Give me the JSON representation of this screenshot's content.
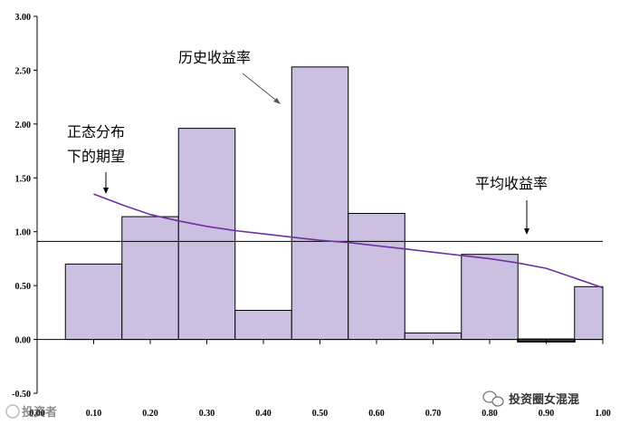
{
  "chart_data": {
    "type": "bar",
    "title": "",
    "xlabel": "",
    "ylabel": "",
    "ylim": [
      -0.5,
      3.0
    ],
    "xlim": [
      0.0,
      1.0
    ],
    "grid": false,
    "y_ticks": [
      "3.00",
      "2.50",
      "2.00",
      "1.50",
      "1.00",
      "0.50",
      "0.00",
      "-0.50"
    ],
    "x_ticks": [
      "0.00",
      "0.10",
      "0.20",
      "0.30",
      "0.40",
      "0.50",
      "0.60",
      "0.70",
      "0.80",
      "0.90",
      "1.00"
    ],
    "bins": [
      {
        "from": 0.05,
        "to": 0.15,
        "value": 0.7
      },
      {
        "from": 0.15,
        "to": 0.25,
        "value": 1.14
      },
      {
        "from": 0.25,
        "to": 0.35,
        "value": 1.96
      },
      {
        "from": 0.35,
        "to": 0.45,
        "value": 0.27
      },
      {
        "from": 0.45,
        "to": 0.55,
        "value": 2.53
      },
      {
        "from": 0.55,
        "to": 0.65,
        "value": 1.17
      },
      {
        "from": 0.65,
        "to": 0.75,
        "value": 0.06
      },
      {
        "from": 0.75,
        "to": 0.85,
        "value": 0.79
      },
      {
        "from": 0.85,
        "to": 0.95,
        "value": -0.02
      },
      {
        "from": 0.95,
        "to": 1.0,
        "value": 0.49
      }
    ],
    "expected_curve": {
      "x": [
        0.1,
        0.15,
        0.2,
        0.25,
        0.3,
        0.35,
        0.4,
        0.45,
        0.5,
        0.55,
        0.6,
        0.65,
        0.7,
        0.75,
        0.8,
        0.85,
        0.9,
        0.95,
        1.0
      ],
      "y": [
        1.35,
        1.25,
        1.16,
        1.1,
        1.05,
        1.01,
        0.98,
        0.95,
        0.92,
        0.9,
        0.87,
        0.84,
        0.81,
        0.78,
        0.75,
        0.71,
        0.66,
        0.57,
        0.48
      ]
    },
    "average_line": 0.91,
    "colors": {
      "bar_fill": "#ccc0e2",
      "bar_stroke": "#000000",
      "curve": "#7030a0",
      "average": "#000000"
    },
    "annotations": {
      "historical": "历史收益率",
      "normal_1": "正态分布",
      "normal_2": "下的期望",
      "average": "平均收益率"
    }
  },
  "watermark_left": "投资者",
  "watermark_right": "投资圈女混混"
}
